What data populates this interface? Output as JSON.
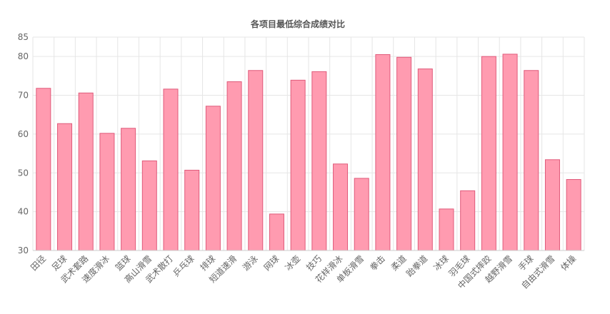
{
  "chart_data": {
    "type": "bar",
    "title": "各项目最低综合成绩对比",
    "xlabel": "",
    "ylabel": "",
    "ylim": [
      30,
      85
    ],
    "yticks": [
      30,
      40,
      50,
      60,
      70,
      80,
      85
    ],
    "grid": true,
    "categories": [
      "田径",
      "足球",
      "武术套路",
      "速度滑冰",
      "篮球",
      "高山滑雪",
      "武术散打",
      "乒乓球",
      "排球",
      "短道速滑",
      "游泳",
      "网球",
      "冰壶",
      "技巧",
      "花样滑冰",
      "单板滑雪",
      "拳击",
      "柔道",
      "跆拳道",
      "冰球",
      "羽毛球",
      "中国式摔跤",
      "越野滑雪",
      "手球",
      "自由式滑雪",
      "体操"
    ],
    "values": [
      71.8,
      62.7,
      70.6,
      60.2,
      61.5,
      53.1,
      71.6,
      50.7,
      67.2,
      73.5,
      76.4,
      39.4,
      73.9,
      76.1,
      52.3,
      48.6,
      80.5,
      79.8,
      76.8,
      40.7,
      45.4,
      80.0,
      80.6,
      76.4,
      53.4,
      48.3
    ],
    "colors": {
      "bar_fill": "#ff9bb0",
      "bar_stroke": "#e05a7a"
    }
  }
}
